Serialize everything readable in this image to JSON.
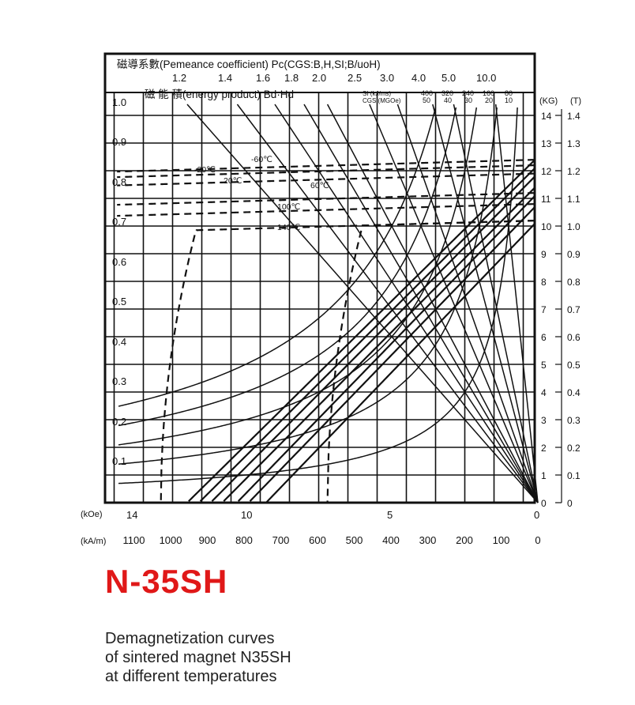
{
  "header": {
    "pc_title": "磁導系數(Pemeance coefficient) Pc(CGS:B,H,SI;B/uoH)",
    "bh_title": "磁 能 積(energy product)  Bd·Hd",
    "si_label": "SI   (kJ/ms)",
    "cgs_label": "CGS (MGOe)"
  },
  "pc_ticks": [
    "1.2",
    "1.4",
    "1.6",
    "1.8",
    "2.0",
    "2.5",
    "3.0",
    "4.0",
    "5.0",
    "10.0"
  ],
  "bh_si": [
    "400",
    "320",
    "240",
    "160",
    "80"
  ],
  "bh_cgs": [
    "50",
    "40",
    "30",
    "20",
    "10"
  ],
  "axes": {
    "left_ticks": [
      "1.0",
      "0.9",
      "0.8",
      "0.7",
      "0.6",
      "0.5",
      "0.4",
      "0.3",
      "0.2",
      "0.1"
    ],
    "kg_unit": "(KG)",
    "t_unit": "(T)",
    "kg_ticks": [
      "14",
      "13",
      "12",
      "11",
      "10",
      "9",
      "8",
      "7",
      "6",
      "5",
      "4",
      "3",
      "2",
      "1",
      "0"
    ],
    "t_ticks": [
      "1.4",
      "1.3",
      "1.2",
      "1.1",
      "1.0",
      "0.9",
      "0.8",
      "0.7",
      "0.6",
      "0.5",
      "0.4",
      "0.3",
      "0.2",
      "0.1",
      "0"
    ],
    "koe_unit": "(kOe)",
    "koe_ticks": [
      "14",
      "10",
      "5",
      "0"
    ],
    "kam_unit": "(kA/m)",
    "kam_ticks": [
      "1100",
      "1000",
      "900",
      "800",
      "700",
      "600",
      "500",
      "400",
      "300",
      "200",
      "100",
      "0"
    ]
  },
  "chart_data": {
    "type": "line",
    "title": "N-35SH",
    "subtitle": "Demagnetization curves of sintered magnet N35SH at different temperatures",
    "xlabel": "(kOe) / (kA/m)",
    "ylabel": "(KG) / (T)",
    "x_axis": "H (kOe), decreasing to the right",
    "xlim": [
      14.4,
      0
    ],
    "ylim": [
      0,
      14.4
    ],
    "grid": true,
    "temperatures": [
      {
        "name": "-60℃",
        "Br": 12.4
      },
      {
        "name": "-20℃",
        "Br": 12.2
      },
      {
        "name": "20℃",
        "Br": 11.9
      },
      {
        "name": "60℃",
        "Br": 11.2
      },
      {
        "name": "100℃",
        "Br": 10.8
      },
      {
        "name": "140℃",
        "Br": 10.2,
        "Hcj": 12.9
      },
      {
        "name": "140℃",
        "Br": 10.2,
        "Hcj": 7.2
      }
    ],
    "normal_curves": [
      {
        "Br": 12.5,
        "Hc": 12.0
      },
      {
        "Br": 12.2,
        "Hc": 11.6
      },
      {
        "Br": 11.9,
        "Hc": 11.2
      },
      {
        "Br": 11.5,
        "Hc": 10.8
      },
      {
        "Br": 11.2,
        "Hc": 10.3
      },
      {
        "Br": 10.8,
        "Hc": 9.9
      },
      {
        "Br": 10.2,
        "Hc": 9.3
      }
    ],
    "permeance_lines": [
      1.2,
      1.4,
      1.6,
      1.8,
      2.0,
      2.5,
      3.0,
      4.0,
      5.0,
      10.0
    ],
    "energy_product_curves_MGOe": [
      50,
      40,
      30,
      20,
      10
    ],
    "energy_product_curves_kJ": [
      400,
      320,
      240,
      160,
      80
    ]
  },
  "colors": {
    "title": "#e01818",
    "ink": "#111111"
  },
  "title": "N-35SH",
  "caption": [
    "Demagnetization curves",
    "of sintered magnet N35SH",
    "at different temperatures"
  ]
}
